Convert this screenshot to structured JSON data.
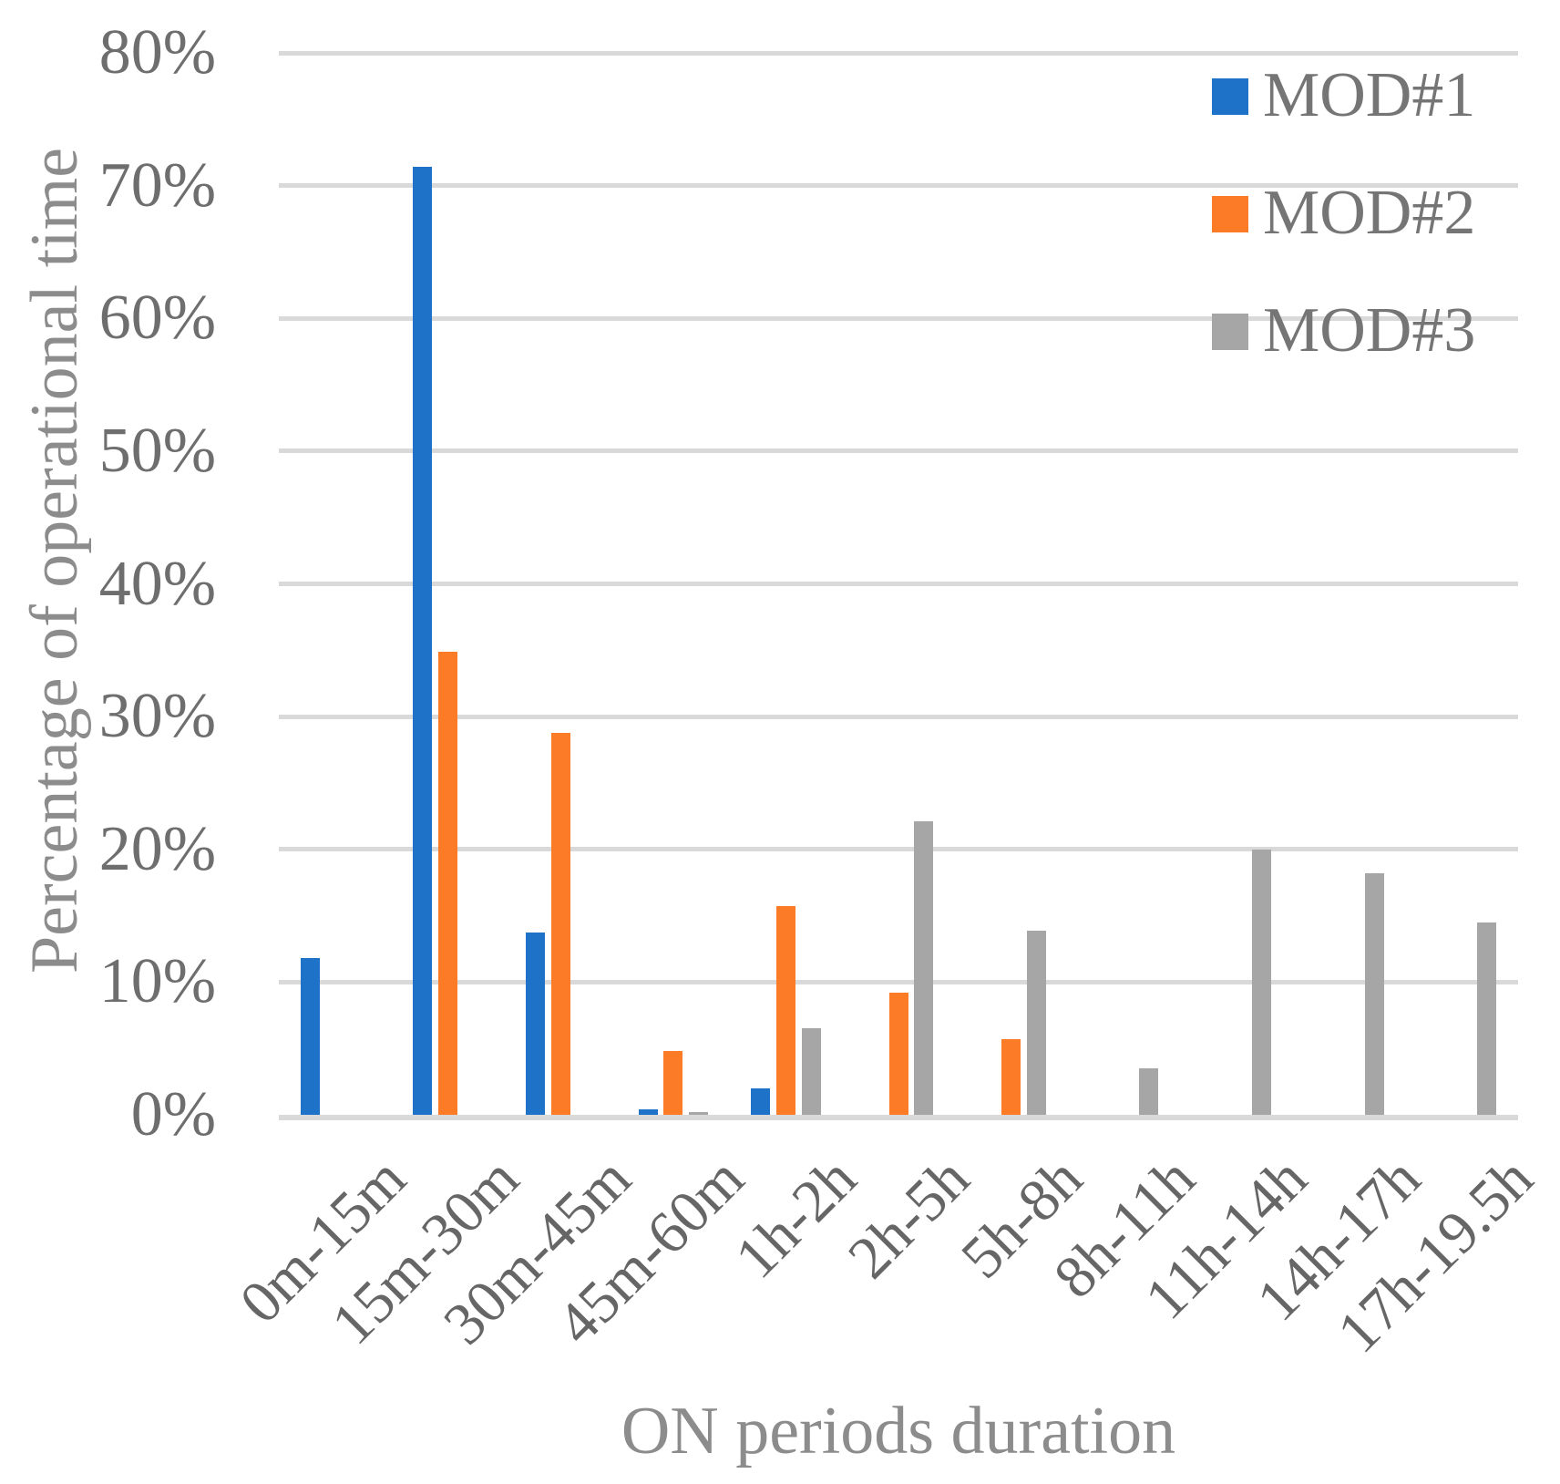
{
  "chart_data": {
    "type": "bar",
    "title": "",
    "xlabel": "ON periods duration",
    "ylabel": "Percentage of operational time",
    "ylim": [
      0,
      80
    ],
    "ytick_step": 10,
    "yticks": [
      "0%",
      "10%",
      "20%",
      "30%",
      "40%",
      "50%",
      "60%",
      "70%",
      "80%"
    ],
    "grid": true,
    "legend_position": "top-right",
    "categories": [
      "0m-15m",
      "15m-30m",
      "30m-45m",
      "45m-60m",
      "1h-2h",
      "2h-5h",
      "5h-8h",
      "8h-11h",
      "11h-14h",
      "14h-17h",
      "17h-19.5h"
    ],
    "series": [
      {
        "name": "MOD#1",
        "color": "#1e73c8",
        "values": [
          11.8,
          71.4,
          13.7,
          0.4,
          2.0,
          0,
          0,
          0,
          0,
          0,
          0
        ]
      },
      {
        "name": "MOD#2",
        "color": "#fc7b27",
        "values": [
          0,
          34.9,
          28.8,
          4.8,
          15.7,
          9.2,
          5.7,
          0,
          0,
          0,
          0
        ]
      },
      {
        "name": "MOD#3",
        "color": "#a6a6a6",
        "values": [
          0,
          0,
          0,
          0.2,
          6.5,
          22.1,
          13.9,
          3.5,
          20.0,
          18.2,
          14.5
        ]
      }
    ]
  },
  "colors": {
    "gridline": "#d9d9d9",
    "tick_label": "#6e6e6e",
    "axis_title": "#8c8c8c",
    "legend_text": "#757575"
  }
}
